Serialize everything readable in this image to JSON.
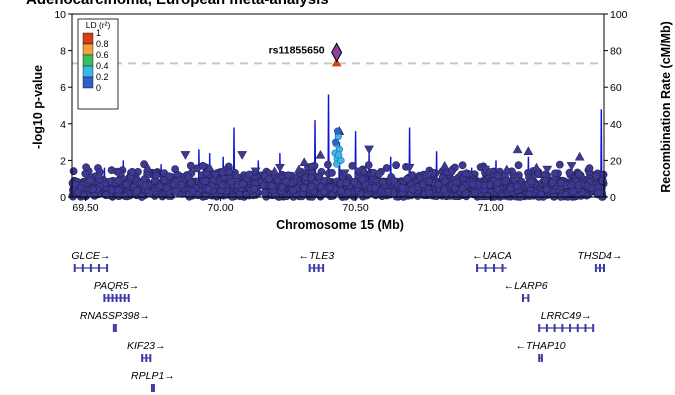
{
  "chart_data": {
    "type": "scatter",
    "title": "Adenocarcinoma, European meta-analysis",
    "xlabel": "Chromosome 15 (Mb)",
    "ylabel": "-log10 p-value",
    "y2label": "Recombination Rate (cM/Mb)",
    "xlim": [
      69.45,
      71.42
    ],
    "ylim": [
      0,
      10
    ],
    "y2lim": [
      0,
      100
    ],
    "x_ticks": [
      "69.50",
      "70.00",
      "70.50",
      "71.00"
    ],
    "y_ticks": [
      "0",
      "2",
      "4",
      "6",
      "8",
      "10"
    ],
    "y2_ticks": [
      "0",
      "20",
      "40",
      "60",
      "80",
      "100"
    ],
    "grid": false,
    "significance_line": 7.3,
    "legend": {
      "title": "LD (r²)",
      "placement": "top-left",
      "labels": [
        "1",
        "0.8",
        "0.6",
        "0.4",
        "0.2",
        "0"
      ],
      "colors": [
        "#d43f1a",
        "#f5a03c",
        "#35c15d",
        "#3ab6e8",
        "#2d5fd0",
        "#2b2e8c"
      ]
    },
    "lead_snp": {
      "name": "rs11855650",
      "x": 70.43,
      "y": 7.9
    },
    "colors": {
      "background_points": "#3d3a8f",
      "point_outline": "#24215e",
      "recombination": "#0a14d8",
      "lead_snp_fill": "#8e3ba3",
      "significance_line": "#c8c8c8",
      "genes": "#3d3aa8"
    },
    "recombination_peaks": [
      {
        "x": 69.57,
        "y": 16
      },
      {
        "x": 69.64,
        "y": 20
      },
      {
        "x": 69.78,
        "y": 18
      },
      {
        "x": 69.92,
        "y": 26
      },
      {
        "x": 69.96,
        "y": 24
      },
      {
        "x": 70.01,
        "y": 22
      },
      {
        "x": 70.05,
        "y": 38
      },
      {
        "x": 70.14,
        "y": 20
      },
      {
        "x": 70.22,
        "y": 24
      },
      {
        "x": 70.35,
        "y": 42
      },
      {
        "x": 70.4,
        "y": 56
      },
      {
        "x": 70.44,
        "y": 30
      },
      {
        "x": 70.5,
        "y": 36
      },
      {
        "x": 70.55,
        "y": 24
      },
      {
        "x": 70.63,
        "y": 22
      },
      {
        "x": 70.7,
        "y": 38
      },
      {
        "x": 70.8,
        "y": 25
      },
      {
        "x": 70.93,
        "y": 16
      },
      {
        "x": 71.02,
        "y": 20
      },
      {
        "x": 71.14,
        "y": 22
      },
      {
        "x": 71.3,
        "y": 18
      },
      {
        "x": 71.41,
        "y": 48
      }
    ],
    "highlighted_snps": [
      {
        "x": 70.424,
        "y": 2.4,
        "ld": 0.4
      },
      {
        "x": 70.428,
        "y": 2.9,
        "ld": 0.4
      },
      {
        "x": 70.432,
        "y": 2.1,
        "ld": 0.4
      },
      {
        "x": 70.436,
        "y": 3.3,
        "ld": 0.4
      },
      {
        "x": 70.44,
        "y": 2.6,
        "ld": 0.4
      },
      {
        "x": 70.43,
        "y": 1.8,
        "ld": 0.4
      },
      {
        "x": 70.438,
        "y": 2.3,
        "ld": 0.4
      },
      {
        "x": 70.426,
        "y": 3.0,
        "ld": 0.2
      },
      {
        "x": 70.446,
        "y": 2.0,
        "ld": 0.4
      },
      {
        "x": 70.433,
        "y": 3.6,
        "ld": 0.2
      }
    ],
    "upper_triangles": [
      {
        "x": 69.55,
        "y": 1.2
      },
      {
        "x": 69.73,
        "y": 1.6
      },
      {
        "x": 69.96,
        "y": 1.6
      },
      {
        "x": 70.06,
        "y": 1.2
      },
      {
        "x": 70.2,
        "y": 1.4
      },
      {
        "x": 70.29,
        "y": 1.5
      },
      {
        "x": 70.31,
        "y": 1.9
      },
      {
        "x": 70.37,
        "y": 2.3
      },
      {
        "x": 70.44,
        "y": 3.6
      },
      {
        "x": 70.83,
        "y": 1.7
      },
      {
        "x": 70.91,
        "y": 1.3
      },
      {
        "x": 71.06,
        "y": 1.5
      },
      {
        "x": 71.1,
        "y": 2.6
      },
      {
        "x": 71.14,
        "y": 2.5
      },
      {
        "x": 71.17,
        "y": 1.6
      },
      {
        "x": 71.33,
        "y": 2.2
      }
    ],
    "lower_triangles": [
      {
        "x": 69.62,
        "y": 1.3
      },
      {
        "x": 69.87,
        "y": 2.3
      },
      {
        "x": 69.98,
        "y": 1.2
      },
      {
        "x": 70.08,
        "y": 2.3
      },
      {
        "x": 70.13,
        "y": 1.4
      },
      {
        "x": 70.22,
        "y": 1.6
      },
      {
        "x": 70.46,
        "y": 1.3
      },
      {
        "x": 70.51,
        "y": 1.4
      },
      {
        "x": 70.55,
        "y": 2.6
      },
      {
        "x": 70.7,
        "y": 1.6
      },
      {
        "x": 70.77,
        "y": 1.2
      },
      {
        "x": 70.98,
        "y": 1.5
      },
      {
        "x": 71.21,
        "y": 1.5
      },
      {
        "x": 71.3,
        "y": 1.7
      }
    ],
    "genes": [
      {
        "name": "GLCE",
        "strand": "+",
        "start": 69.46,
        "end": 69.58,
        "row": 0
      },
      {
        "name": "PAQR5",
        "strand": "+",
        "start": 69.57,
        "end": 69.66,
        "row": 1
      },
      {
        "name": "RNA5SP398",
        "strand": "+",
        "start": 69.605,
        "end": 69.607,
        "row": 2
      },
      {
        "name": "KIF23",
        "strand": "+",
        "start": 69.71,
        "end": 69.74,
        "row": 3
      },
      {
        "name": "RPLP1",
        "strand": "+",
        "start": 69.746,
        "end": 69.749,
        "row": 4
      },
      {
        "name": "TLE3",
        "strand": "-",
        "start": 70.33,
        "end": 70.38,
        "row": 0
      },
      {
        "name": "UACA",
        "strand": "-",
        "start": 70.95,
        "end": 71.06,
        "row": 0
      },
      {
        "name": "THSD4",
        "strand": "+",
        "start": 71.39,
        "end": 71.42,
        "row": 0
      },
      {
        "name": "LARP6",
        "strand": "-",
        "start": 71.12,
        "end": 71.14,
        "row": 1
      },
      {
        "name": "LRRC49",
        "strand": "+",
        "start": 71.18,
        "end": 71.38,
        "row": 2
      },
      {
        "name": "THAP10",
        "strand": "-",
        "start": 71.18,
        "end": 71.19,
        "row": 3
      }
    ]
  }
}
